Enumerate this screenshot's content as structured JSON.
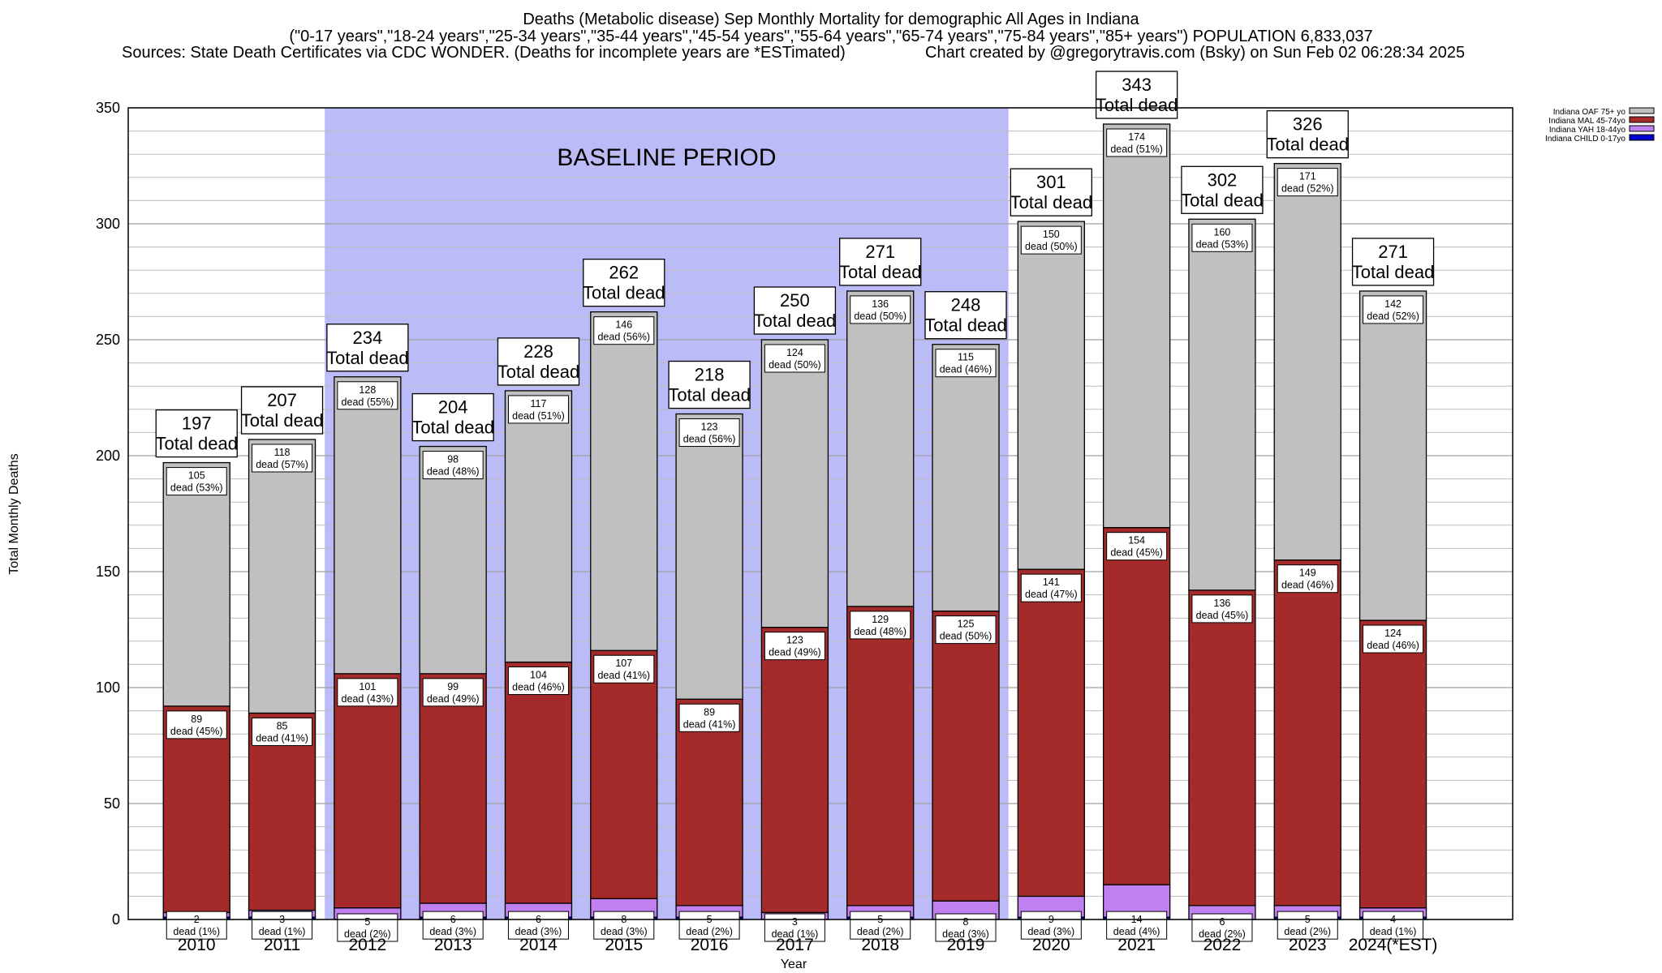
{
  "header": {
    "title": "Deaths (Metabolic disease) Sep Monthly Mortality for demographic All Ages in Indiana",
    "subtitle": "(\"0-17 years\",\"18-24 years\",\"25-34 years\",\"35-44 years\",\"45-54 years\",\"55-64 years\",\"65-74 years\",\"75-84 years\",\"85+ years\") POPULATION 6,833,037",
    "sources": "Sources: State Death Certificates via CDC WONDER. (Deaths for incomplete years are *ESTimated)",
    "credit": "Chart created by @gregorytravis.com (Bsky) on Sun Feb 02 06:28:34 2025"
  },
  "colors": {
    "plot_bg": "#ffffff",
    "baseline_bg": "#bbbbf8",
    "grid": "#bdbdbd",
    "oaf": "#c0c0c0",
    "mal": "#a52a2a",
    "yah": "#c080f0",
    "child": "#0000cc"
  },
  "chart_data": {
    "type": "bar",
    "stacked": true,
    "title": "Deaths (Metabolic disease) Sep Monthly Mortality for demographic All Ages in Indiana",
    "xlabel": "Year",
    "ylabel": "Total Monthly Deaths",
    "ylim": [
      0,
      350
    ],
    "yticks": [
      0,
      50,
      100,
      150,
      200,
      250,
      300,
      350
    ],
    "grid": true,
    "legend_position": "top-right",
    "categories": [
      "2010",
      "2011",
      "2012",
      "2013",
      "2014",
      "2015",
      "2016",
      "2017",
      "2018",
      "2019",
      "2020",
      "2021",
      "2022",
      "2023",
      "2024(*EST)"
    ],
    "baseline": {
      "label": "BASELINE PERIOD",
      "from": "2012",
      "to": "2019"
    },
    "total_label": "Total dead",
    "totals": [
      197,
      207,
      234,
      204,
      228,
      262,
      218,
      250,
      271,
      248,
      301,
      343,
      302,
      326,
      271
    ],
    "series": [
      {
        "name": "Indiana CHILD 0-17yo",
        "key": "child",
        "values": [
          1,
          1,
          0,
          1,
          1,
          1,
          1,
          0,
          1,
          0,
          1,
          1,
          0,
          1,
          1
        ]
      },
      {
        "name": "Indiana YAH 18-44yo",
        "key": "yah",
        "values": [
          2,
          3,
          5,
          6,
          6,
          8,
          5,
          3,
          5,
          8,
          9,
          14,
          6,
          5,
          4
        ],
        "labels": [
          "2\ndead (1%)",
          "3\ndead (1%)",
          "5\ndead (2%)",
          "6\ndead (3%)",
          "6\ndead (3%)",
          "8\ndead (3%)",
          "5\ndead (2%)",
          "3\ndead (1%)",
          "5\ndead (2%)",
          "8\ndead (3%)",
          "9\ndead (3%)",
          "14\ndead (4%)",
          "6\ndead (2%)",
          "5\ndead (2%)",
          "4\ndead (1%)"
        ]
      },
      {
        "name": "Indiana MAL 45-74yo",
        "key": "mal",
        "values": [
          89,
          85,
          101,
          99,
          104,
          107,
          89,
          123,
          129,
          125,
          141,
          154,
          136,
          149,
          124
        ],
        "labels": [
          "89\ndead (45%)",
          "85\ndead (41%)",
          "101\ndead (43%)",
          "99\ndead (49%)",
          "104\ndead (46%)",
          "107\ndead (41%)",
          "89\ndead (41%)",
          "123\ndead (49%)",
          "129\ndead (48%)",
          "125\ndead (50%)",
          "141\ndead (47%)",
          "154\ndead (45%)",
          "136\ndead (45%)",
          "149\ndead (46%)",
          "124\ndead (46%)"
        ]
      },
      {
        "name": "Indiana OAF 75+ yo",
        "key": "oaf",
        "values": [
          105,
          118,
          128,
          98,
          117,
          146,
          123,
          124,
          136,
          115,
          150,
          174,
          160,
          171,
          142
        ],
        "labels": [
          "105\ndead (53%)",
          "118\ndead (57%)",
          "128\ndead (55%)",
          "98\ndead (48%)",
          "117\ndead (51%)",
          "146\ndead (56%)",
          "123\ndead (56%)",
          "124\ndead (50%)",
          "136\ndead (50%)",
          "115\ndead (46%)",
          "150\ndead (50%)",
          "174\ndead (51%)",
          "160\ndead (53%)",
          "171\ndead (52%)",
          "142\ndead (52%)"
        ]
      }
    ],
    "legend": [
      {
        "name": "Indiana OAF 75+ yo",
        "key": "oaf"
      },
      {
        "name": "Indiana MAL 45-74yo",
        "key": "mal"
      },
      {
        "name": "Indiana YAH 18-44yo",
        "key": "yah"
      },
      {
        "name": "Indiana CHILD 0-17yo",
        "key": "child"
      }
    ]
  }
}
